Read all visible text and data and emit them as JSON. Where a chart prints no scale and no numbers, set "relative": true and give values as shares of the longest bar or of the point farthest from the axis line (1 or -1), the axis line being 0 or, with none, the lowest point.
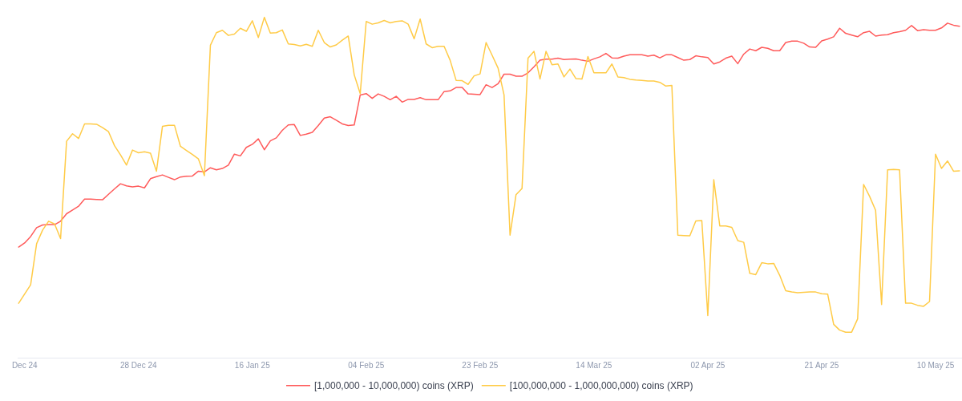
{
  "chart_data": {
    "type": "line",
    "relative": true,
    "legend": "bottom",
    "x": [
      "2024-12-08",
      "2024-12-09",
      "2024-12-10",
      "2024-12-11",
      "2024-12-12",
      "2024-12-13",
      "2024-12-14",
      "2024-12-15",
      "2024-12-16",
      "2024-12-17",
      "2024-12-18",
      "2024-12-19",
      "2024-12-20",
      "2024-12-21",
      "2024-12-22",
      "2024-12-23",
      "2024-12-24",
      "2024-12-25",
      "2024-12-26",
      "2024-12-27",
      "2024-12-28",
      "2024-12-29",
      "2024-12-30",
      "2024-12-31",
      "2025-01-01",
      "2025-01-02",
      "2025-01-03",
      "2025-01-04",
      "2025-01-05",
      "2025-01-06",
      "2025-01-07",
      "2025-01-08",
      "2025-01-09",
      "2025-01-10",
      "2025-01-11",
      "2025-01-12",
      "2025-01-13",
      "2025-01-14",
      "2025-01-15",
      "2025-01-16",
      "2025-01-17",
      "2025-01-18",
      "2025-01-19",
      "2025-01-20",
      "2025-01-21",
      "2025-01-22",
      "2025-01-23",
      "2025-01-24",
      "2025-01-25",
      "2025-01-26",
      "2025-01-27",
      "2025-01-28",
      "2025-01-29",
      "2025-01-30",
      "2025-01-31",
      "2025-02-01",
      "2025-02-02",
      "2025-02-03",
      "2025-02-04",
      "2025-02-05",
      "2025-02-06",
      "2025-02-07",
      "2025-02-08",
      "2025-02-09",
      "2025-02-10",
      "2025-02-11",
      "2025-02-12",
      "2025-02-13",
      "2025-02-14",
      "2025-02-15",
      "2025-02-16",
      "2025-02-17",
      "2025-02-18",
      "2025-02-19",
      "2025-02-20",
      "2025-02-21",
      "2025-02-22",
      "2025-02-23",
      "2025-02-24",
      "2025-02-25",
      "2025-02-26",
      "2025-02-27",
      "2025-02-28",
      "2025-03-01",
      "2025-03-02",
      "2025-03-03",
      "2025-03-04",
      "2025-03-05",
      "2025-03-06",
      "2025-03-07",
      "2025-03-08",
      "2025-03-09",
      "2025-03-10",
      "2025-03-11",
      "2025-03-12",
      "2025-03-13",
      "2025-03-14",
      "2025-03-15",
      "2025-03-16",
      "2025-03-17",
      "2025-03-18",
      "2025-03-19",
      "2025-03-20",
      "2025-03-21",
      "2025-03-22",
      "2025-03-23",
      "2025-03-24",
      "2025-03-25",
      "2025-03-26",
      "2025-03-27",
      "2025-03-28",
      "2025-03-29",
      "2025-03-30",
      "2025-03-31",
      "2025-04-01",
      "2025-04-02",
      "2025-04-03",
      "2025-04-04",
      "2025-04-05",
      "2025-04-06",
      "2025-04-07",
      "2025-04-08",
      "2025-04-09",
      "2025-04-10",
      "2025-04-11",
      "2025-04-12",
      "2025-04-13",
      "2025-04-14",
      "2025-04-15",
      "2025-04-16",
      "2025-04-17",
      "2025-04-18",
      "2025-04-19",
      "2025-04-20",
      "2025-04-21",
      "2025-04-22",
      "2025-04-23",
      "2025-04-24",
      "2025-04-25",
      "2025-04-26",
      "2025-04-27",
      "2025-04-28",
      "2025-04-29",
      "2025-04-30",
      "2025-05-01",
      "2025-05-02",
      "2025-05-03",
      "2025-05-04",
      "2025-05-05",
      "2025-05-06",
      "2025-05-07",
      "2025-05-08",
      "2025-05-09",
      "2025-05-10",
      "2025-05-11",
      "2025-05-12",
      "2025-05-13",
      "2025-05-14"
    ],
    "xlim": [
      "2024-12-07T20:00",
      "2025-05-14T10:00"
    ],
    "xticks": [
      {
        "value": "2024-12-09",
        "label": "Dec 24"
      },
      {
        "value": "2024-12-28",
        "label": "28 Dec 24"
      },
      {
        "value": "2025-01-16",
        "label": "16 Jan 25"
      },
      {
        "value": "2025-02-04",
        "label": "04 Feb 25"
      },
      {
        "value": "2025-02-23",
        "label": "23 Feb 25"
      },
      {
        "value": "2025-03-14",
        "label": "14 Mar 25"
      },
      {
        "value": "2025-04-02",
        "label": "02 Apr 25"
      },
      {
        "value": "2025-04-21",
        "label": "21 Apr 25"
      },
      {
        "value": "2025-05-10",
        "label": "10 May 25"
      }
    ],
    "series": [
      {
        "name": "[1,000,000 - 10,000,000) coins (XRP)",
        "color": "#ff5b5b",
        "values": [
          0.325,
          0.337,
          0.356,
          0.382,
          0.39,
          0.391,
          0.391,
          0.401,
          0.423,
          0.434,
          0.445,
          0.466,
          0.466,
          0.465,
          0.464,
          0.48,
          0.496,
          0.511,
          0.505,
          0.502,
          0.504,
          0.499,
          0.526,
          0.532,
          0.537,
          0.53,
          0.523,
          0.531,
          0.533,
          0.534,
          0.548,
          0.546,
          0.558,
          0.552,
          0.556,
          0.566,
          0.598,
          0.593,
          0.618,
          0.627,
          0.643,
          0.611,
          0.637,
          0.646,
          0.668,
          0.684,
          0.685,
          0.653,
          0.657,
          0.662,
          0.682,
          0.704,
          0.708,
          0.698,
          0.687,
          0.682,
          0.684,
          0.772,
          0.776,
          0.762,
          0.775,
          0.768,
          0.758,
          0.768,
          0.751,
          0.759,
          0.759,
          0.764,
          0.758,
          0.758,
          0.758,
          0.782,
          0.784,
          0.794,
          0.794,
          0.775,
          0.774,
          0.773,
          0.802,
          0.794,
          0.805,
          0.833,
          0.833,
          0.827,
          0.827,
          0.837,
          0.855,
          0.874,
          0.877,
          0.877,
          0.88,
          0.876,
          0.877,
          0.878,
          0.874,
          0.871,
          0.878,
          0.884,
          0.894,
          0.881,
          0.88,
          0.886,
          0.89,
          0.89,
          0.89,
          0.886,
          0.889,
          0.881,
          0.89,
          0.89,
          0.882,
          0.874,
          0.876,
          0.887,
          0.884,
          0.882,
          0.863,
          0.869,
          0.88,
          0.886,
          0.864,
          0.892,
          0.907,
          0.902,
          0.912,
          0.909,
          0.902,
          0.902,
          0.926,
          0.93,
          0.93,
          0.924,
          0.913,
          0.912,
          0.931,
          0.936,
          0.943,
          0.968,
          0.953,
          0.948,
          0.943,
          0.955,
          0.959,
          0.945,
          0.948,
          0.949,
          0.955,
          0.958,
          0.962,
          0.976,
          0.961,
          0.964,
          0.962,
          0.962,
          0.969,
          0.983,
          0.977,
          0.974
        ]
      },
      {
        "name": "[100,000,000 - 1,000,000,000) coins (XRP)",
        "color": "#ffcb47",
        "values": [
          0.16,
          0.187,
          0.214,
          0.335,
          0.375,
          0.401,
          0.393,
          0.35,
          0.636,
          0.658,
          0.644,
          0.687,
          0.687,
          0.686,
          0.676,
          0.664,
          0.623,
          0.596,
          0.566,
          0.61,
          0.602,
          0.605,
          0.601,
          0.548,
          0.68,
          0.683,
          0.683,
          0.621,
          0.609,
          0.597,
          0.584,
          0.535,
          0.918,
          0.955,
          0.962,
          0.947,
          0.951,
          0.968,
          0.959,
          0.99,
          0.941,
          1.0,
          0.954,
          0.955,
          0.963,
          0.922,
          0.92,
          0.916,
          0.921,
          0.915,
          0.962,
          0.926,
          0.913,
          0.919,
          0.933,
          0.945,
          0.831,
          0.776,
          0.988,
          0.98,
          0.984,
          0.991,
          0.984,
          0.988,
          0.99,
          0.98,
          0.937,
          0.995,
          0.922,
          0.911,
          0.915,
          0.915,
          0.874,
          0.815,
          0.814,
          0.803,
          0.828,
          0.834,
          0.926,
          0.889,
          0.851,
          0.772,
          0.36,
          0.479,
          0.497,
          0.88,
          0.9,
          0.819,
          0.9,
          0.861,
          0.863,
          0.825,
          0.848,
          0.82,
          0.819,
          0.885,
          0.837,
          0.837,
          0.837,
          0.863,
          0.825,
          0.823,
          0.818,
          0.816,
          0.815,
          0.813,
          0.813,
          0.809,
          0.798,
          0.8,
          0.36,
          0.359,
          0.358,
          0.402,
          0.403,
          0.124,
          0.523,
          0.387,
          0.387,
          0.383,
          0.344,
          0.339,
          0.248,
          0.244,
          0.279,
          0.276,
          0.277,
          0.242,
          0.197,
          0.193,
          0.191,
          0.192,
          0.193,
          0.193,
          0.188,
          0.187,
          0.098,
          0.081,
          0.075,
          0.075,
          0.114,
          0.509,
          0.474,
          0.433,
          0.156,
          0.552,
          0.553,
          0.552,
          0.16,
          0.16,
          0.154,
          0.151,
          0.165,
          0.598,
          0.556,
          0.578,
          0.548,
          0.549
        ]
      }
    ]
  }
}
